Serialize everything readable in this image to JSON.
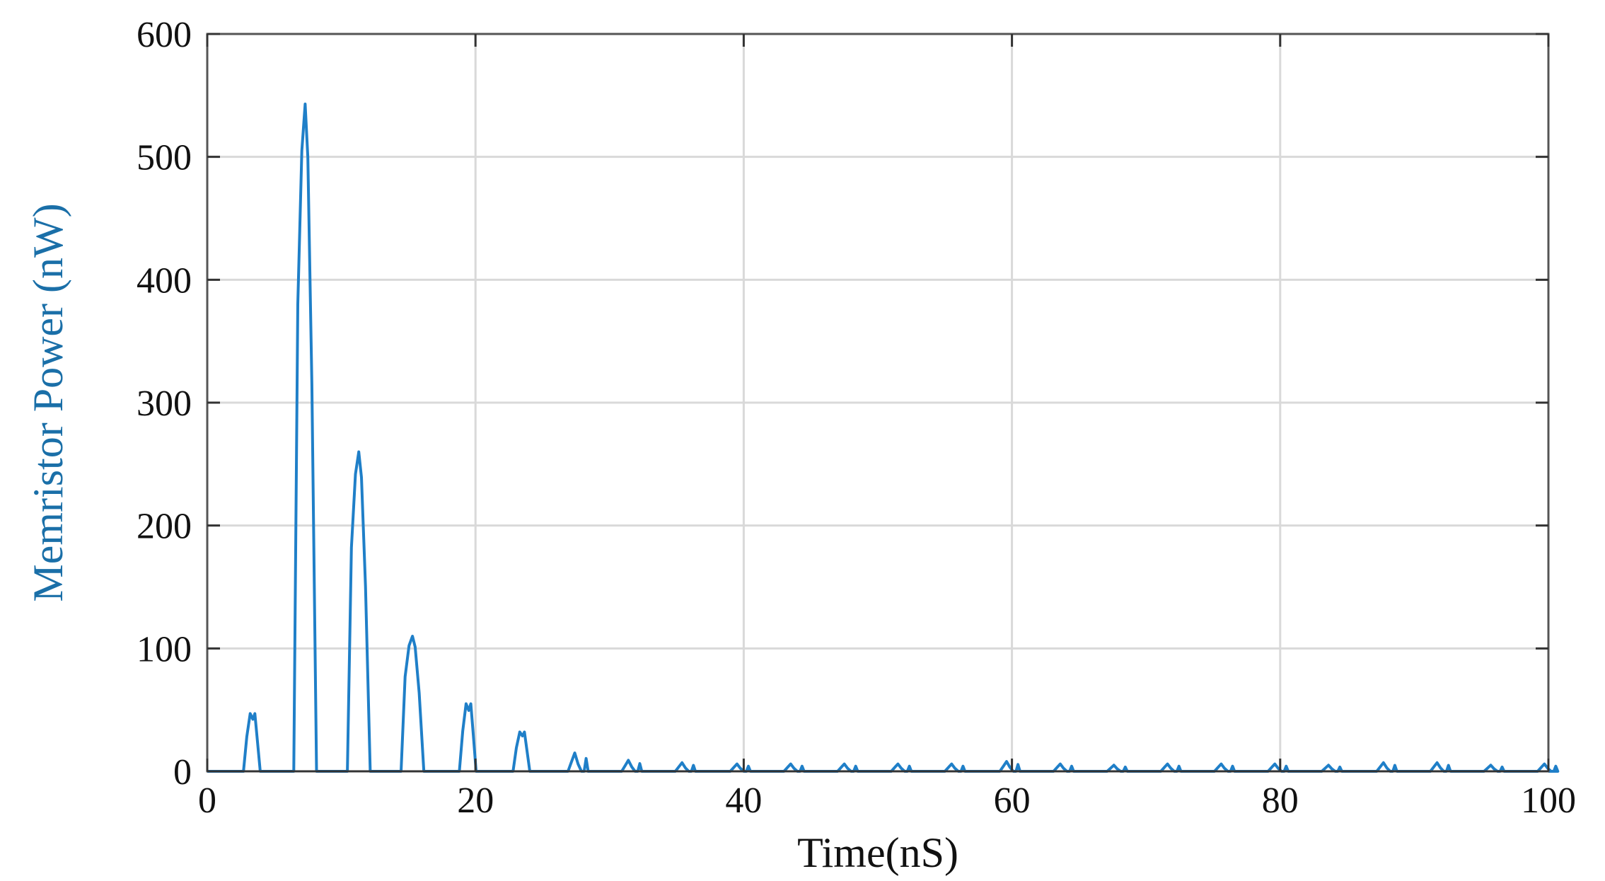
{
  "chart_data": {
    "type": "line",
    "title": "",
    "xlabel": "Time(nS)",
    "ylabel": "Memristor Power (nW)",
    "xlim": [
      0,
      100
    ],
    "ylim": [
      0,
      600
    ],
    "xticks": [
      "0",
      "20",
      "40",
      "60",
      "80",
      "100"
    ],
    "yticks": [
      "0",
      "100",
      "200",
      "300",
      "400",
      "500",
      "600"
    ],
    "grid": true,
    "colors": {
      "line": "#1f7fc8",
      "ylabel": "#1a6fa8",
      "grid": "#d9d9d9",
      "axes": "#555555"
    },
    "series": [
      {
        "peaks": [
          {
            "t": 3.3,
            "p": 47
          },
          {
            "t": 7.3,
            "p": 543
          },
          {
            "t": 11.3,
            "p": 260
          },
          {
            "t": 15.3,
            "p": 110
          },
          {
            "t": 19.4,
            "p": 55
          },
          {
            "t": 23.4,
            "p": 32
          },
          {
            "t": 27.4,
            "p": 15
          },
          {
            "t": 31.4,
            "p": 9
          },
          {
            "t": 35.4,
            "p": 7
          },
          {
            "t": 39.5,
            "p": 6
          },
          {
            "t": 43.5,
            "p": 6
          },
          {
            "t": 47.5,
            "p": 6
          },
          {
            "t": 51.5,
            "p": 6
          },
          {
            "t": 55.5,
            "p": 6
          },
          {
            "t": 59.6,
            "p": 8
          },
          {
            "t": 63.6,
            "p": 6
          },
          {
            "t": 67.6,
            "p": 5
          },
          {
            "t": 71.6,
            "p": 6
          },
          {
            "t": 75.6,
            "p": 6
          },
          {
            "t": 79.6,
            "p": 6
          },
          {
            "t": 83.6,
            "p": 5
          },
          {
            "t": 87.7,
            "p": 7
          },
          {
            "t": 91.7,
            "p": 7
          },
          {
            "t": 95.7,
            "p": 5
          },
          {
            "t": 99.7,
            "p": 6
          }
        ]
      }
    ]
  }
}
